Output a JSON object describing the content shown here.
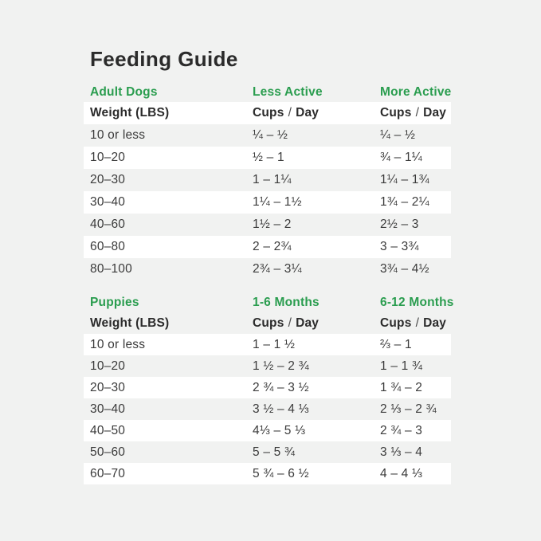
{
  "colors": {
    "page_background": "#f1f2f1",
    "row_highlight": "#ffffff",
    "accent_green": "#2a9d4f",
    "text_dark": "#2b2b2b"
  },
  "page": {
    "title": "Feeding Guide"
  },
  "adult_table": {
    "section_label": "Adult Dogs",
    "col2_label": "Less Active",
    "col3_label": "More Active",
    "header": {
      "weight": "Weight (LBS)",
      "cups": "Cups",
      "slash": "/",
      "day": "Day"
    },
    "rows": [
      {
        "weight": "10 or less",
        "col2": "¼ – ½",
        "col3": "¼ – ½"
      },
      {
        "weight": "10–20",
        "col2": "½ – 1",
        "col3": "¾ – 1¼"
      },
      {
        "weight": "20–30",
        "col2": "1 – 1¼",
        "col3": "1¼ – 1¾"
      },
      {
        "weight": "30–40",
        "col2": "1¼ – 1½",
        "col3": "1¾ – 2¼"
      },
      {
        "weight": "40–60",
        "col2": "1½ – 2",
        "col3": "2½ – 3"
      },
      {
        "weight": "60–80",
        "col2": "2 – 2¾",
        "col3": "3 – 3¾"
      },
      {
        "weight": "80–100",
        "col2": "2¾ – 3¼",
        "col3": "3¾ – 4½"
      }
    ]
  },
  "puppy_table": {
    "section_label": "Puppies",
    "col2_label": "1-6 Months",
    "col3_label": "6-12 Months",
    "header": {
      "weight": "Weight (LBS)",
      "cups": "Cups",
      "slash": "/",
      "day": "Day"
    },
    "rows": [
      {
        "weight": "10 or less",
        "col2": "1 – 1 ½",
        "col3": "⅔ – 1"
      },
      {
        "weight": "10–20",
        "col2": "1 ½ – 2 ¾",
        "col3": "1 – 1 ¾"
      },
      {
        "weight": "20–30",
        "col2": "2 ¾ – 3 ½",
        "col3": "1 ¾ – 2"
      },
      {
        "weight": "30–40",
        "col2": "3 ½ – 4 ⅓",
        "col3": "2 ⅓ – 2 ¾"
      },
      {
        "weight": "40–50",
        "col2": "4⅓ – 5 ⅓",
        "col3": "2 ¾ – 3"
      },
      {
        "weight": "50–60",
        "col2": "5 – 5 ¾",
        "col3": "3 ⅓ – 4"
      },
      {
        "weight": "60–70",
        "col2": "5 ¾ – 6 ½",
        "col3": "4 – 4 ⅓"
      }
    ]
  }
}
